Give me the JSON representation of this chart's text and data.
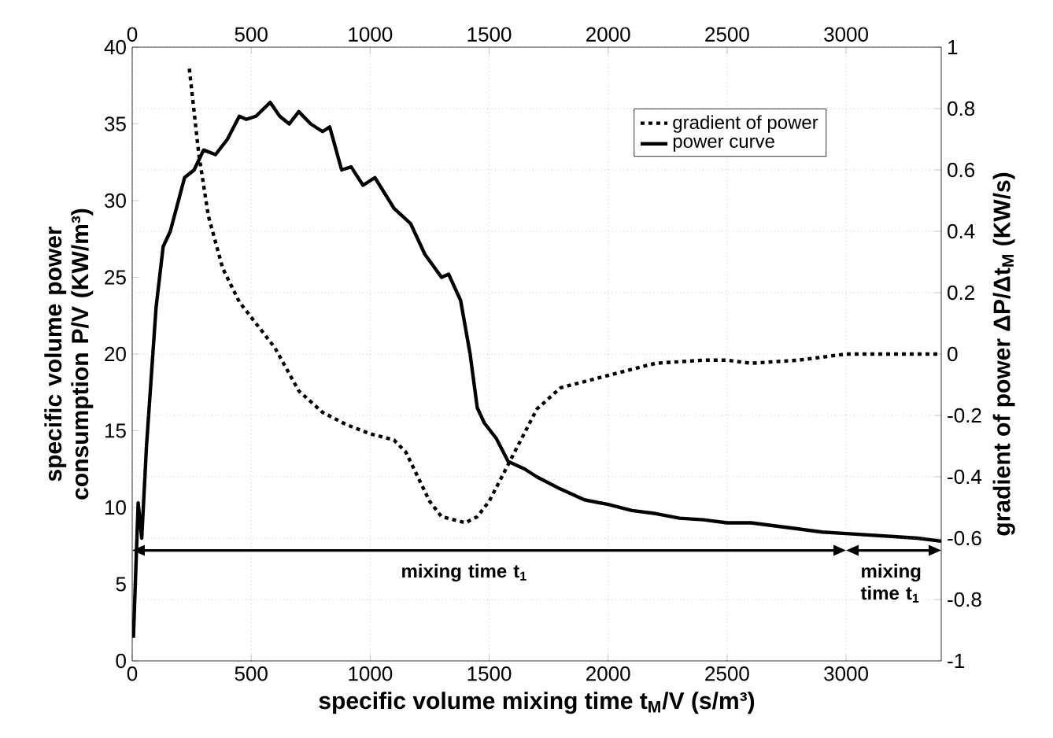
{
  "chart_data": {
    "type": "line",
    "xlabel": "specific volume mixing time t$_{M}$/V (s/m³)",
    "ylabel": "specific volume power consumption  P/V (KW/m³)",
    "y2label": "gradient of power ΔP/Δt$_{M}$ (KW/s)",
    "xlim": [
      0,
      3400
    ],
    "xticks": [
      0,
      500,
      1000,
      1500,
      2000,
      2500,
      3000
    ],
    "x2lim": [
      0,
      3400
    ],
    "x2ticks": [
      0,
      500,
      1000,
      1500,
      2000,
      2500,
      3000
    ],
    "ylim": [
      0,
      40
    ],
    "yticks": [
      0,
      5,
      10,
      15,
      20,
      25,
      30,
      35,
      40
    ],
    "y2lim": [
      -1,
      1
    ],
    "y2ticks": [
      -1,
      -0.8,
      -0.6,
      -0.4,
      -0.2,
      0,
      0.2,
      0.4,
      0.6,
      0.8,
      1
    ],
    "grid": true,
    "legend": "top right",
    "marker": "none",
    "series": [
      {
        "name": "gradient of power",
        "color": "#000000",
        "axis": "y2",
        "line_style": "dotted",
        "x": [
          240,
          280,
          320,
          380,
          450,
          550,
          600,
          650,
          700,
          800,
          900,
          1000,
          1100,
          1150,
          1200,
          1250,
          1300,
          1400,
          1450,
          1500,
          1600,
          1700,
          1800,
          1900,
          2000,
          2100,
          2200,
          2400,
          2500,
          2600,
          2800,
          3000,
          3200,
          3400
        ],
        "values": [
          0.93,
          0.65,
          0.45,
          0.28,
          0.17,
          0.07,
          0.02,
          -0.05,
          -0.12,
          -0.19,
          -0.23,
          -0.26,
          -0.28,
          -0.32,
          -0.4,
          -0.48,
          -0.53,
          -0.55,
          -0.53,
          -0.48,
          -0.33,
          -0.18,
          -0.11,
          -0.09,
          -0.07,
          -0.05,
          -0.03,
          -0.02,
          -0.02,
          -0.03,
          -0.02,
          0,
          0,
          0
        ]
      },
      {
        "name": "power curve",
        "color": "#000000",
        "line_style": "solid",
        "x": [
          5,
          25,
          40,
          60,
          100,
          130,
          160,
          220,
          260,
          300,
          350,
          400,
          450,
          480,
          520,
          580,
          620,
          660,
          700,
          750,
          800,
          830,
          880,
          920,
          970,
          1020,
          1100,
          1170,
          1230,
          1300,
          1330,
          1380,
          1420,
          1450,
          1480,
          1530,
          1580,
          1650,
          1700,
          1800,
          1900,
          2000,
          2100,
          2200,
          2300,
          2400,
          2500,
          2600,
          2700,
          2800,
          2900,
          3000,
          3100,
          3200,
          3300,
          3400
        ],
        "values": [
          1.5,
          10.3,
          8,
          14,
          23,
          27,
          28,
          31.5,
          32,
          33.3,
          33,
          34,
          35.5,
          35.3,
          35.5,
          36.4,
          35.5,
          35,
          35.8,
          35,
          34.5,
          34.8,
          32,
          32.2,
          31,
          31.5,
          29.5,
          28.5,
          26.5,
          25,
          25.2,
          23.5,
          20,
          16.5,
          15.5,
          14.5,
          13,
          12.5,
          12,
          11.2,
          10.5,
          10.2,
          9.8,
          9.6,
          9.3,
          9.2,
          9,
          9,
          8.8,
          8.6,
          8.4,
          8.3,
          8.2,
          8.1,
          8,
          7.8
        ]
      }
    ],
    "annotations": [
      "mixing time t$_{1}$",
      "mixing time t$_{1}$"
    ]
  }
}
